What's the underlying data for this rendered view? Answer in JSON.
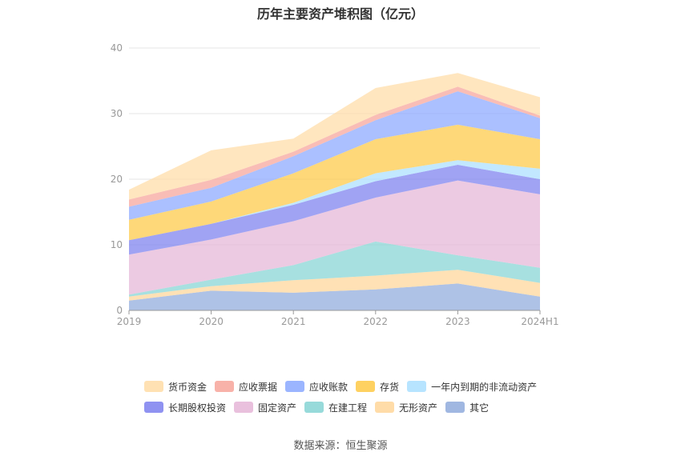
{
  "chart_data": {
    "type": "area",
    "stacked": true,
    "title": "历年主要资产堆积图（亿元）",
    "categories": [
      "2019",
      "2020",
      "2021",
      "2022",
      "2023",
      "2024H1"
    ],
    "ylim": [
      0,
      40
    ],
    "yticks": [
      0,
      10,
      20,
      30,
      40
    ],
    "grid": true,
    "legend_position": "bottom",
    "series": [
      {
        "name": "其它",
        "color": "#8faadc",
        "values": [
          1.5,
          3.0,
          2.7,
          3.2,
          4.1,
          2.1
        ]
      },
      {
        "name": "无形资产",
        "color": "#ffd699",
        "values": [
          0.6,
          0.7,
          1.9,
          2.1,
          2.1,
          2.1
        ]
      },
      {
        "name": "在建工程",
        "color": "#85d4d4",
        "values": [
          0.3,
          1.0,
          2.3,
          5.2,
          2.2,
          2.3
        ]
      },
      {
        "name": "固定资产",
        "color": "#e5b5d7",
        "values": [
          6.1,
          6.1,
          6.7,
          6.7,
          11.4,
          11.2
        ]
      },
      {
        "name": "长期股权投资",
        "color": "#7b7fee",
        "values": [
          2.2,
          2.4,
          2.5,
          2.5,
          2.4,
          2.3
        ]
      },
      {
        "name": "一年内到期的非流动资产",
        "color": "#aadfff",
        "values": [
          0.0,
          0.0,
          0.3,
          1.2,
          0.7,
          1.6
        ]
      },
      {
        "name": "存货",
        "color": "#fec945",
        "values": [
          3.1,
          3.4,
          4.5,
          5.2,
          5.4,
          4.5
        ]
      },
      {
        "name": "应收账款",
        "color": "#8aa8ff",
        "values": [
          2.0,
          2.1,
          2.6,
          2.9,
          5.1,
          3.2
        ]
      },
      {
        "name": "应收票据",
        "color": "#f7a49a",
        "values": [
          1.1,
          1.2,
          0.7,
          0.8,
          0.7,
          0.4
        ]
      },
      {
        "name": "货币资金",
        "color": "#ffdca6",
        "values": [
          1.5,
          4.5,
          2.0,
          4.1,
          2.1,
          2.8
        ]
      }
    ],
    "legend_rows": [
      [
        "货币资金",
        "应收票据",
        "应收账款",
        "存货",
        "一年内到期的非流动资产"
      ],
      [
        "长期股权投资",
        "固定资产",
        "在建工程",
        "无形资产",
        "其它"
      ]
    ],
    "source": "数据来源：恒生聚源"
  }
}
